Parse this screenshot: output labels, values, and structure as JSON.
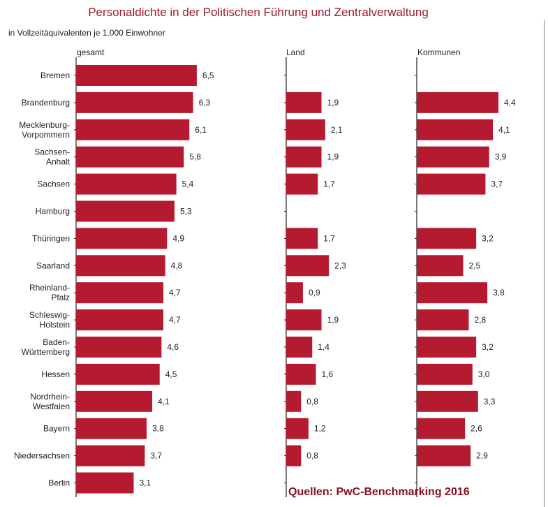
{
  "title": "Personaldichte in der Politischen Führung und Zentralverwaltung",
  "subtitle": "in Vollzeitäquivalenten je 1.000 Einwohner",
  "source": "Quellen: PwC-Benchmarking 2016",
  "colors": {
    "bar": "#b51b30",
    "title": "#a01a2a",
    "source": "#8b1020",
    "axis": "#222222"
  },
  "chart_data": {
    "type": "bar",
    "orientation": "horizontal",
    "categories": [
      [
        "Bremen"
      ],
      [
        "Brandenburg"
      ],
      [
        "Mecklenburg-",
        "Vorpommern"
      ],
      [
        "Sachsen-",
        "Anhalt"
      ],
      [
        "Sachsen"
      ],
      [
        "Hamburg"
      ],
      [
        "Thüringen"
      ],
      [
        "Saarland"
      ],
      [
        "Rheinland-",
        "Pfalz"
      ],
      [
        "Schleswig-",
        "Holstein"
      ],
      [
        "Baden-",
        "Württemberg"
      ],
      [
        "Hessen"
      ],
      [
        "Nordrhein-",
        "Westfalen"
      ],
      [
        "Bayern"
      ],
      [
        "Niedersachsen"
      ],
      [
        "Berlin"
      ]
    ],
    "series": [
      {
        "name": "gesamt",
        "values": [
          6.5,
          6.3,
          6.1,
          5.8,
          5.4,
          5.3,
          4.9,
          4.8,
          4.7,
          4.7,
          4.6,
          4.5,
          4.1,
          3.8,
          3.7,
          3.1
        ],
        "labels": [
          "6,5",
          "6,3",
          "6,1",
          "5,8",
          "5,4",
          "5,3",
          "4,9",
          "4,8",
          "4,7",
          "4,7",
          "4,6",
          "4,5",
          "4,1",
          "3,8",
          "3,7",
          "3,1"
        ]
      },
      {
        "name": "Land",
        "values": [
          null,
          1.9,
          2.1,
          1.9,
          1.7,
          null,
          1.7,
          2.3,
          0.9,
          1.9,
          1.4,
          1.6,
          0.8,
          1.2,
          0.8,
          null
        ],
        "labels": [
          null,
          "1,9",
          "2,1",
          "1,9",
          "1,7",
          null,
          "1,7",
          "2,3",
          "0,9",
          "1,9",
          "1,4",
          "1,6",
          "0,8",
          "1,2",
          "0,8",
          null
        ]
      },
      {
        "name": "Kommunen",
        "values": [
          null,
          4.4,
          4.1,
          3.9,
          3.7,
          null,
          3.2,
          2.5,
          3.8,
          2.8,
          3.2,
          3.0,
          3.3,
          2.6,
          2.9,
          null
        ],
        "labels": [
          null,
          "4,4",
          "4,1",
          "3,9",
          "3,7",
          null,
          "3,2",
          "2,5",
          "3,8",
          "2,8",
          "3,2",
          "3,0",
          "3,3",
          "2,6",
          "2,9",
          null
        ]
      }
    ],
    "legend": "none",
    "grid": false
  }
}
